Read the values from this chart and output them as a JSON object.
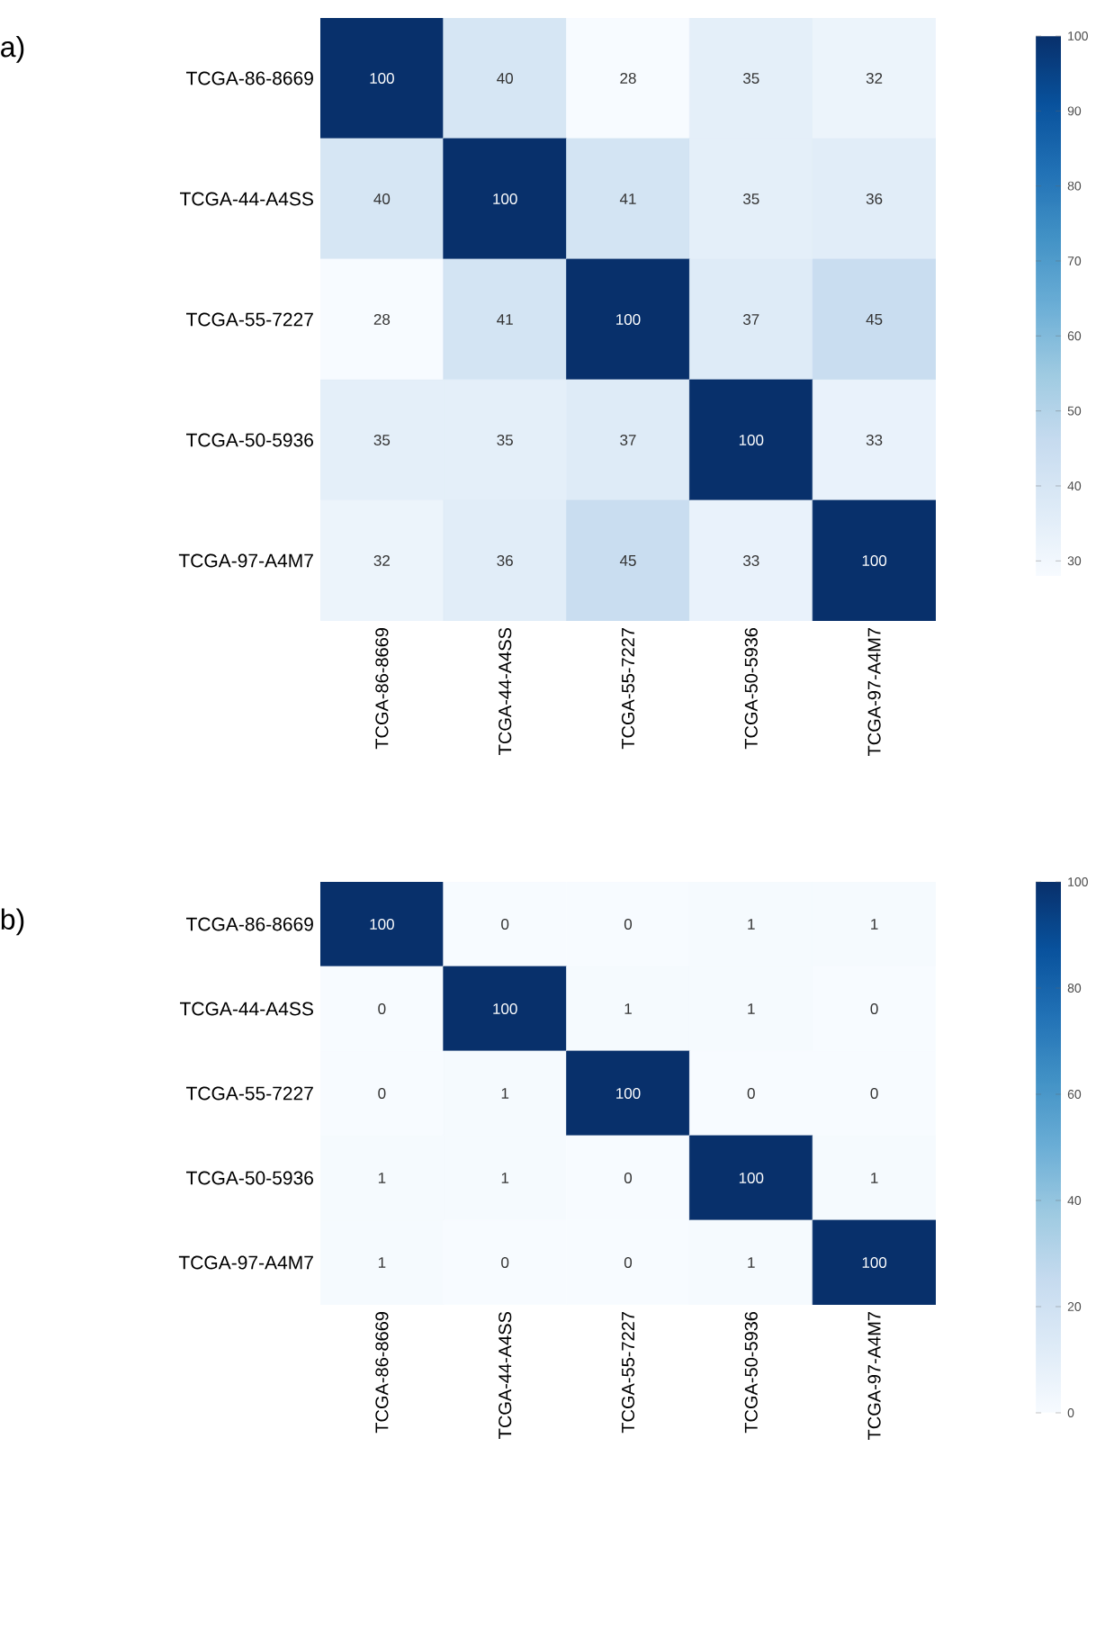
{
  "chart_data": [
    {
      "type": "heatmap",
      "title": "a)",
      "categories": [
        "TCGA-86-8669",
        "TCGA-44-A4SS",
        "TCGA-55-7227",
        "TCGA-50-5936",
        "TCGA-97-A4M7"
      ],
      "y_categories": [
        "TCGA-86-8669",
        "TCGA-44-A4SS",
        "TCGA-55-7227",
        "TCGA-50-5936",
        "TCGA-97-A4M7"
      ],
      "cells": [
        [
          100,
          40,
          28,
          35,
          32
        ],
        [
          40,
          100,
          41,
          35,
          36
        ],
        [
          28,
          41,
          100,
          37,
          45
        ],
        [
          35,
          35,
          37,
          100,
          33
        ],
        [
          32,
          36,
          45,
          33,
          100
        ]
      ],
      "data_labels": true,
      "clim": [
        28,
        100
      ],
      "cticks": [
        30,
        40,
        50,
        60,
        70,
        80,
        90,
        100
      ]
    },
    {
      "type": "heatmap",
      "title": "b)",
      "categories": [
        "TCGA-86-8669",
        "TCGA-44-A4SS",
        "TCGA-55-7227",
        "TCGA-50-5936",
        "TCGA-97-A4M7"
      ],
      "y_categories": [
        "TCGA-86-8669",
        "TCGA-44-A4SS",
        "TCGA-55-7227",
        "TCGA-50-5936",
        "TCGA-97-A4M7"
      ],
      "cells": [
        [
          100,
          0,
          0,
          1,
          1
        ],
        [
          0,
          100,
          1,
          1,
          0
        ],
        [
          0,
          1,
          100,
          0,
          0
        ],
        [
          1,
          1,
          0,
          100,
          1
        ],
        [
          1,
          0,
          0,
          1,
          100
        ]
      ],
      "data_labels": true,
      "clim": [
        0,
        100
      ],
      "cticks": [
        0,
        20,
        40,
        60,
        80,
        100
      ]
    }
  ]
}
